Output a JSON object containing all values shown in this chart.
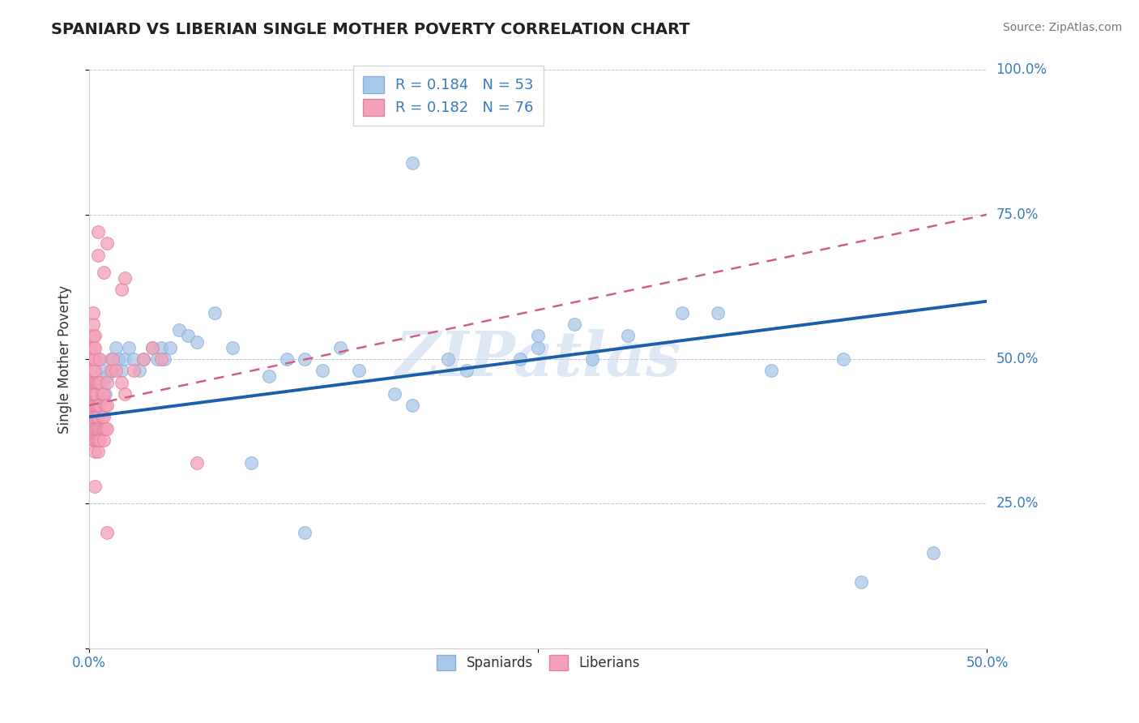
{
  "title": "SPANIARD VS LIBERIAN SINGLE MOTHER POVERTY CORRELATION CHART",
  "source": "Source: ZipAtlas.com",
  "ylabel": "Single Mother Poverty",
  "spaniard_color": "#a8c8e8",
  "liberian_color": "#f4a0b8",
  "spaniard_line_color": "#1a5fa8",
  "liberian_line_color": "#d06080",
  "R_spaniard": 0.184,
  "N_spaniard": 53,
  "R_liberian": 0.182,
  "N_liberian": 76,
  "watermark": "ZIPatlas",
  "spaniard_points": [
    [
      0.003,
      0.42
    ],
    [
      0.004,
      0.45
    ],
    [
      0.005,
      0.5
    ],
    [
      0.006,
      0.44
    ],
    [
      0.007,
      0.48
    ],
    [
      0.008,
      0.46
    ],
    [
      0.009,
      0.44
    ],
    [
      0.01,
      0.47
    ],
    [
      0.012,
      0.5
    ],
    [
      0.013,
      0.48
    ],
    [
      0.015,
      0.52
    ],
    [
      0.016,
      0.5
    ],
    [
      0.018,
      0.48
    ],
    [
      0.02,
      0.5
    ],
    [
      0.022,
      0.52
    ],
    [
      0.025,
      0.5
    ],
    [
      0.028,
      0.48
    ],
    [
      0.03,
      0.5
    ],
    [
      0.035,
      0.52
    ],
    [
      0.038,
      0.5
    ],
    [
      0.04,
      0.52
    ],
    [
      0.042,
      0.5
    ],
    [
      0.045,
      0.52
    ],
    [
      0.05,
      0.55
    ],
    [
      0.055,
      0.54
    ],
    [
      0.06,
      0.53
    ],
    [
      0.07,
      0.58
    ],
    [
      0.08,
      0.52
    ],
    [
      0.09,
      0.32
    ],
    [
      0.1,
      0.47
    ],
    [
      0.11,
      0.5
    ],
    [
      0.12,
      0.5
    ],
    [
      0.13,
      0.48
    ],
    [
      0.14,
      0.52
    ],
    [
      0.15,
      0.48
    ],
    [
      0.17,
      0.44
    ],
    [
      0.18,
      0.42
    ],
    [
      0.2,
      0.5
    ],
    [
      0.21,
      0.48
    ],
    [
      0.24,
      0.5
    ],
    [
      0.25,
      0.52
    ],
    [
      0.27,
      0.56
    ],
    [
      0.3,
      0.54
    ],
    [
      0.33,
      0.58
    ],
    [
      0.35,
      0.58
    ],
    [
      0.18,
      0.84
    ],
    [
      0.25,
      0.54
    ],
    [
      0.28,
      0.5
    ],
    [
      0.38,
      0.48
    ],
    [
      0.42,
      0.5
    ],
    [
      0.43,
      0.115
    ],
    [
      0.47,
      0.165
    ],
    [
      0.12,
      0.2
    ]
  ],
  "liberian_points": [
    [
      0.001,
      0.38
    ],
    [
      0.001,
      0.42
    ],
    [
      0.001,
      0.44
    ],
    [
      0.001,
      0.46
    ],
    [
      0.001,
      0.5
    ],
    [
      0.001,
      0.52
    ],
    [
      0.002,
      0.36
    ],
    [
      0.002,
      0.38
    ],
    [
      0.002,
      0.4
    ],
    [
      0.002,
      0.42
    ],
    [
      0.002,
      0.44
    ],
    [
      0.002,
      0.46
    ],
    [
      0.002,
      0.48
    ],
    [
      0.002,
      0.5
    ],
    [
      0.002,
      0.52
    ],
    [
      0.002,
      0.54
    ],
    [
      0.002,
      0.56
    ],
    [
      0.002,
      0.58
    ],
    [
      0.003,
      0.34
    ],
    [
      0.003,
      0.36
    ],
    [
      0.003,
      0.38
    ],
    [
      0.003,
      0.4
    ],
    [
      0.003,
      0.42
    ],
    [
      0.003,
      0.44
    ],
    [
      0.003,
      0.46
    ],
    [
      0.003,
      0.48
    ],
    [
      0.003,
      0.5
    ],
    [
      0.003,
      0.52
    ],
    [
      0.003,
      0.54
    ],
    [
      0.004,
      0.36
    ],
    [
      0.004,
      0.38
    ],
    [
      0.004,
      0.4
    ],
    [
      0.004,
      0.42
    ],
    [
      0.004,
      0.44
    ],
    [
      0.004,
      0.46
    ],
    [
      0.005,
      0.34
    ],
    [
      0.005,
      0.36
    ],
    [
      0.005,
      0.38
    ],
    [
      0.005,
      0.4
    ],
    [
      0.005,
      0.42
    ],
    [
      0.005,
      0.46
    ],
    [
      0.005,
      0.68
    ],
    [
      0.006,
      0.36
    ],
    [
      0.006,
      0.38
    ],
    [
      0.006,
      0.42
    ],
    [
      0.006,
      0.46
    ],
    [
      0.006,
      0.5
    ],
    [
      0.007,
      0.38
    ],
    [
      0.007,
      0.4
    ],
    [
      0.007,
      0.44
    ],
    [
      0.008,
      0.36
    ],
    [
      0.008,
      0.38
    ],
    [
      0.008,
      0.4
    ],
    [
      0.008,
      0.44
    ],
    [
      0.009,
      0.38
    ],
    [
      0.009,
      0.42
    ],
    [
      0.01,
      0.38
    ],
    [
      0.01,
      0.42
    ],
    [
      0.01,
      0.46
    ],
    [
      0.012,
      0.48
    ],
    [
      0.013,
      0.5
    ],
    [
      0.015,
      0.48
    ],
    [
      0.018,
      0.46
    ],
    [
      0.02,
      0.44
    ],
    [
      0.025,
      0.48
    ],
    [
      0.03,
      0.5
    ],
    [
      0.035,
      0.52
    ],
    [
      0.04,
      0.5
    ],
    [
      0.018,
      0.62
    ],
    [
      0.02,
      0.64
    ],
    [
      0.008,
      0.65
    ],
    [
      0.005,
      0.72
    ],
    [
      0.01,
      0.7
    ],
    [
      0.06,
      0.32
    ],
    [
      0.003,
      0.28
    ],
    [
      0.01,
      0.2
    ]
  ]
}
